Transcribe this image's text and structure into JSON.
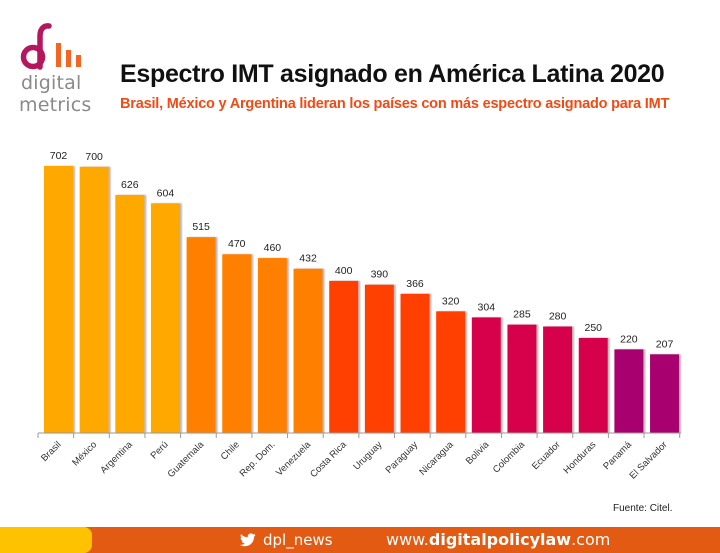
{
  "logo": {
    "line1": "digital",
    "line2": "metrics",
    "colors": {
      "glyph": "#b5175f",
      "bars": "#f26522",
      "text": "#8a8a8a"
    }
  },
  "header": {
    "title": "Espectro IMT asignado en América Latina 2020",
    "subtitle": "Brasil, México y Argentina lideran los países con más espectro asignado para IMT"
  },
  "source": "Fuente: Citel.",
  "footer": {
    "twitter_icon": "twitter-bird-icon",
    "twitter_handle": "dpl_news",
    "site_prefix": "www.",
    "site_domain": "digitalpolicylaw",
    "site_suffix": ".com",
    "colors": {
      "bar": "#e35a13",
      "accent": "#ffc200"
    }
  },
  "chart_data": {
    "type": "bar",
    "title": "Espectro IMT asignado en América Latina 2020",
    "subtitle": "Brasil, México y Argentina lideran los países con más espectro asignado para IMT",
    "xlabel": "",
    "ylabel": "",
    "ylim": [
      0,
      702
    ],
    "grid": false,
    "legend": "none",
    "data_labels": true,
    "categories": [
      "Brasil",
      "México",
      "Argentina",
      "Perú",
      "Guatemala",
      "Chile",
      "Rep. Dom.",
      "Venezuela",
      "Costa Rica",
      "Uruguay",
      "Paraguay",
      "Nicaragua",
      "Bolivia",
      "Colombia",
      "Ecuador",
      "Honduras",
      "Panamá",
      "El Salvador"
    ],
    "values": [
      702,
      700,
      626,
      604,
      515,
      470,
      460,
      432,
      400,
      390,
      366,
      320,
      304,
      285,
      280,
      250,
      220,
      207
    ],
    "bar_colors": [
      "#ffa800",
      "#ffa800",
      "#ffa800",
      "#ffa800",
      "#ff8000",
      "#ff8000",
      "#ff8000",
      "#ff8000",
      "#ff4000",
      "#ff4000",
      "#ff4000",
      "#ff4000",
      "#d6004c",
      "#d6004c",
      "#d6004c",
      "#d6004c",
      "#a8006e",
      "#a8006e"
    ],
    "source": "Fuente: Citel."
  }
}
